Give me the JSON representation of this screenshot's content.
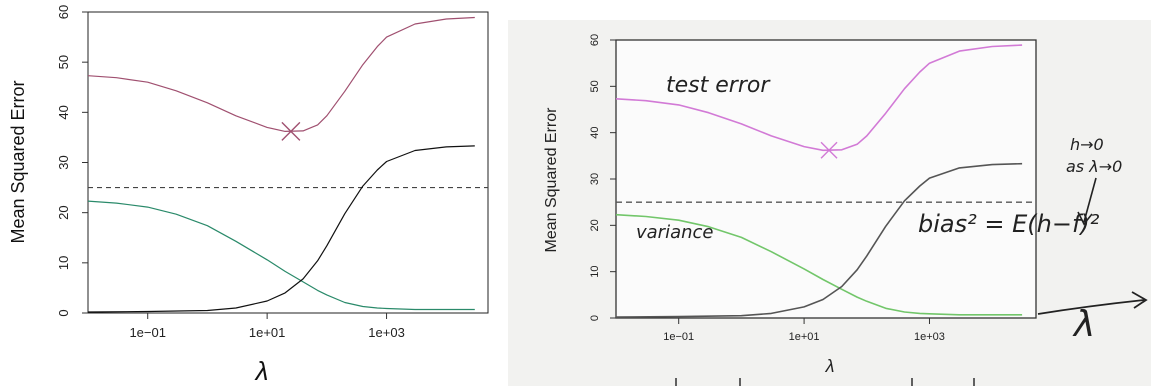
{
  "chart_data": [
    {
      "type": "line",
      "panel": "left",
      "xscale": "log",
      "xlabel": "λ",
      "ylabel": "Mean Squared Error",
      "xlim": [
        0.01,
        50000
      ],
      "ylim": [
        0,
        60
      ],
      "xticks": [
        0.1,
        10,
        1000
      ],
      "xtick_labels": [
        "1e−01",
        "1e+01",
        "1e+03"
      ],
      "yticks": [
        0,
        10,
        20,
        30,
        40,
        50,
        60
      ],
      "ytick_labels": [
        "0",
        "10",
        "20",
        "30",
        "40",
        "50",
        "60"
      ],
      "hline": 25,
      "hline_style": "dashed",
      "series": [
        {
          "color": "#a05070",
          "x": [
            0.01,
            0.03,
            0.1,
            0.3,
            1,
            3,
            10,
            20,
            40,
            70,
            100,
            200,
            400,
            700,
            1000,
            3000,
            10000,
            30000
          ],
          "y": [
            47.3,
            46.9,
            46.0,
            44.3,
            41.9,
            39.3,
            37.0,
            36.2,
            36.3,
            37.5,
            39.3,
            44.2,
            49.5,
            53.1,
            55.0,
            57.6,
            58.6,
            58.9
          ]
        },
        {
          "color": "#2a8a6a",
          "x": [
            0.01,
            0.03,
            0.1,
            0.3,
            1,
            3,
            10,
            20,
            40,
            70,
            100,
            200,
            400,
            700,
            1000,
            3000,
            10000,
            30000
          ],
          "y": [
            22.3,
            21.9,
            21.1,
            19.7,
            17.4,
            14.3,
            10.6,
            8.3,
            6.2,
            4.5,
            3.6,
            2.1,
            1.3,
            1.0,
            0.9,
            0.7,
            0.7,
            0.7
          ]
        },
        {
          "color": "#111111",
          "x": [
            0.01,
            0.1,
            1,
            3,
            10,
            20,
            40,
            70,
            100,
            200,
            400,
            700,
            1000,
            3000,
            10000,
            30000
          ],
          "y": [
            0.2,
            0.3,
            0.5,
            1.0,
            2.4,
            4.0,
            6.8,
            10.4,
            13.4,
            19.8,
            25.3,
            28.5,
            30.2,
            32.4,
            33.1,
            33.3
          ]
        }
      ],
      "marker": {
        "shape": "x",
        "x": 25,
        "y": 36.2,
        "color": "#a05070"
      }
    },
    {
      "type": "line",
      "panel": "right",
      "xscale": "log",
      "xlabel": "λ",
      "ylabel": "Mean Squared Error",
      "xlim": [
        0.01,
        50000
      ],
      "ylim": [
        0,
        60
      ],
      "xticks": [
        0.1,
        10,
        1000
      ],
      "xtick_labels": [
        "1e−01",
        "1e+01",
        "1e+03"
      ],
      "yticks": [
        0,
        10,
        20,
        30,
        40,
        50,
        60
      ],
      "ytick_labels": [
        "0",
        "10",
        "20",
        "30",
        "40",
        "50",
        "60"
      ],
      "hline": 25,
      "hline_style": "dashed",
      "series": [
        {
          "color": "#d27ad6",
          "x": [
            0.01,
            0.03,
            0.1,
            0.3,
            1,
            3,
            10,
            20,
            40,
            70,
            100,
            200,
            400,
            700,
            1000,
            3000,
            10000,
            30000
          ],
          "y": [
            47.3,
            46.9,
            46.0,
            44.3,
            41.9,
            39.3,
            37.0,
            36.2,
            36.3,
            37.5,
            39.3,
            44.2,
            49.5,
            53.1,
            55.0,
            57.6,
            58.6,
            58.9
          ]
        },
        {
          "color": "#72c66a",
          "x": [
            0.01,
            0.03,
            0.1,
            0.3,
            1,
            3,
            10,
            20,
            40,
            70,
            100,
            200,
            400,
            700,
            1000,
            3000,
            10000,
            30000
          ],
          "y": [
            22.3,
            21.9,
            21.1,
            19.7,
            17.4,
            14.3,
            10.6,
            8.3,
            6.2,
            4.5,
            3.6,
            2.1,
            1.3,
            1.0,
            0.9,
            0.7,
            0.7,
            0.7
          ]
        },
        {
          "color": "#555555",
          "x": [
            0.01,
            0.1,
            1,
            3,
            10,
            20,
            40,
            70,
            100,
            200,
            400,
            700,
            1000,
            3000,
            10000,
            30000
          ],
          "y": [
            0.2,
            0.3,
            0.5,
            1.0,
            2.4,
            4.0,
            6.8,
            10.4,
            13.4,
            19.8,
            25.3,
            28.5,
            30.2,
            32.4,
            33.1,
            33.3
          ]
        }
      ],
      "marker": {
        "shape": "x",
        "x": 25,
        "y": 36.2,
        "color": "#d27ad6"
      },
      "annotations": {
        "test_error": "test error",
        "variance": "variance",
        "bias_formula": "bias² = E(h−f)²",
        "h_to_0_line1": "h→0",
        "h_to_0_line2": "as λ→0",
        "lambda_mark": "λ"
      }
    }
  ]
}
